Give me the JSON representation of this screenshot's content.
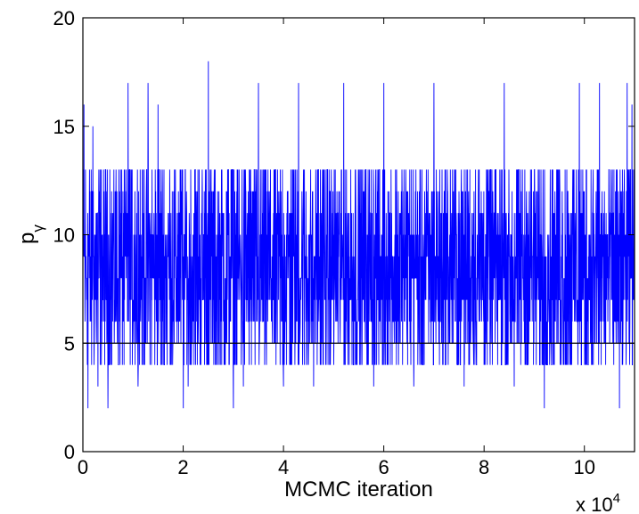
{
  "chart_data": {
    "type": "line",
    "title": "",
    "xlabel": "MCMC iteration",
    "ylabel_main": "p",
    "ylabel_sub": "γ",
    "x_multiplier_base": "x 10",
    "x_multiplier_exp": "4",
    "xlim": [
      0,
      11
    ],
    "ylim": [
      0,
      20
    ],
    "x_ticks": [
      0,
      2,
      4,
      6,
      8,
      10
    ],
    "x_tick_labels": [
      "0",
      "2",
      "4",
      "6",
      "8",
      "10"
    ],
    "y_ticks": [
      0,
      5,
      10,
      15,
      20
    ],
    "y_tick_labels": [
      "0",
      "5",
      "10",
      "15",
      "20"
    ],
    "grid": false,
    "series_color": "#0000ff",
    "reference_lines": [
      {
        "y": 5,
        "color": "#000000"
      }
    ],
    "trace_summary": {
      "n_iterations": 110000,
      "typical_range": [
        4,
        13
      ],
      "center": 8.5,
      "minimum": 2,
      "maximum": 18,
      "max_at_x": 2.5
    },
    "series": [
      {
        "x": [
          0.02,
          0.1,
          0.2,
          0.3,
          0.5,
          0.9,
          1.1,
          1.3,
          1.5,
          2.0,
          2.1,
          2.5,
          3.0,
          3.2,
          3.5,
          4.0,
          4.3,
          4.6,
          5.2,
          5.8,
          6.0,
          6.6,
          7.0,
          7.6,
          8.4,
          8.6,
          9.2,
          9.9,
          10.3,
          10.7,
          10.85,
          10.95
        ],
        "y": [
          16,
          2,
          15,
          3,
          2,
          17,
          3,
          17,
          16,
          2,
          3,
          18,
          2,
          3,
          17,
          3,
          17,
          3,
          17,
          3,
          17,
          3,
          17,
          3,
          17,
          3,
          2,
          17,
          17,
          2,
          17,
          16
        ]
      }
    ]
  }
}
